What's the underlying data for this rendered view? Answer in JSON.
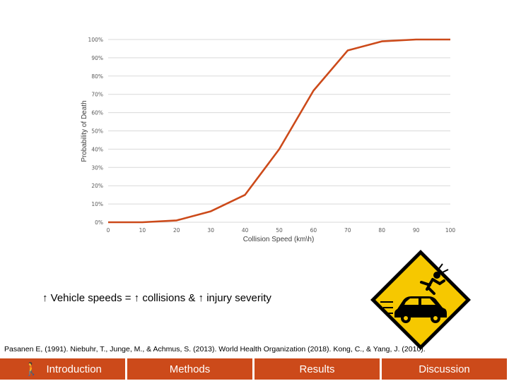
{
  "chart_data": {
    "type": "line",
    "title": "",
    "xlabel": "Collision Speed (km\\h)",
    "ylabel": "Probability of Death",
    "x": [
      0,
      10,
      20,
      30,
      40,
      50,
      60,
      70,
      80,
      90,
      100
    ],
    "x_ticks": [
      "0",
      "10",
      "20",
      "30",
      "40",
      "50",
      "60",
      "70",
      "80",
      "90",
      "100"
    ],
    "y_ticks": [
      "0%",
      "10%",
      "20%",
      "30%",
      "40%",
      "50%",
      "60%",
      "70%",
      "80%",
      "90%",
      "100%"
    ],
    "xlim": [
      0,
      100
    ],
    "ylim": [
      0,
      100
    ],
    "series": [
      {
        "values": [
          0,
          0,
          1,
          6,
          15,
          40,
          72,
          94,
          99,
          100,
          100
        ]
      }
    ],
    "line_color": "#cc4a1a",
    "grid": true,
    "legend": "none"
  },
  "callout": "↑ Vehicle speeds = ↑ collisions & ↑ injury severity",
  "references": "Pasanen E, (1991). Niebuhr, T., Junge, M., & Achmus, S. (2013). World Health Organization (2018). Kong, C., & Yang, J. (2010).",
  "sign_icon": "pedestrian-hit-by-car-warning-sign",
  "nav": {
    "icon": "walking-person-icon",
    "items": [
      "Introduction",
      "Methods",
      "Results",
      "Discussion"
    ],
    "color": "#cc4a1a"
  }
}
